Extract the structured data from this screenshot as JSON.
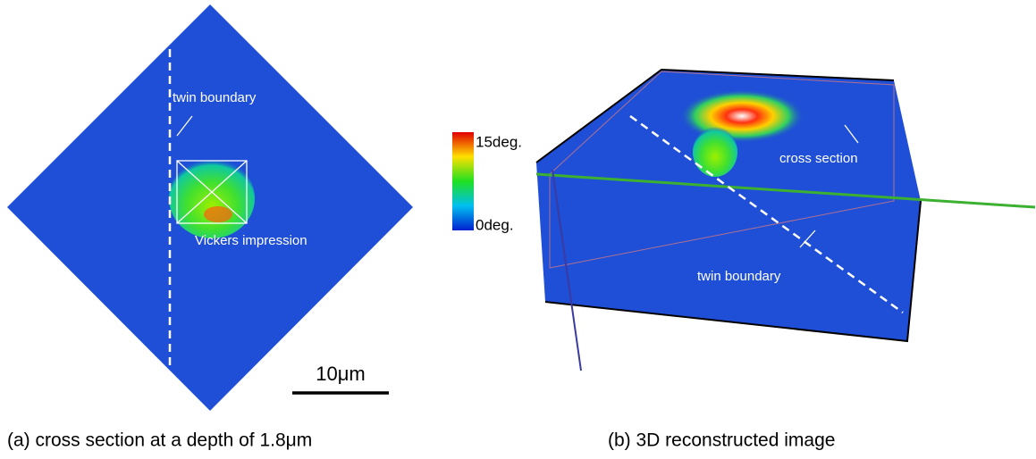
{
  "panel_a": {
    "twin_label": "twin boundary",
    "impression_label": "Vickers impression",
    "scale_bar": "10μm",
    "caption": "(a) cross section at a depth of 1.8μm"
  },
  "colorbar": {
    "max_label": "15deg.",
    "min_label": "0deg."
  },
  "panel_b": {
    "section_label": "cross section",
    "twin_label": "twin boundary",
    "caption": "(b) 3D reconstructed image"
  }
}
